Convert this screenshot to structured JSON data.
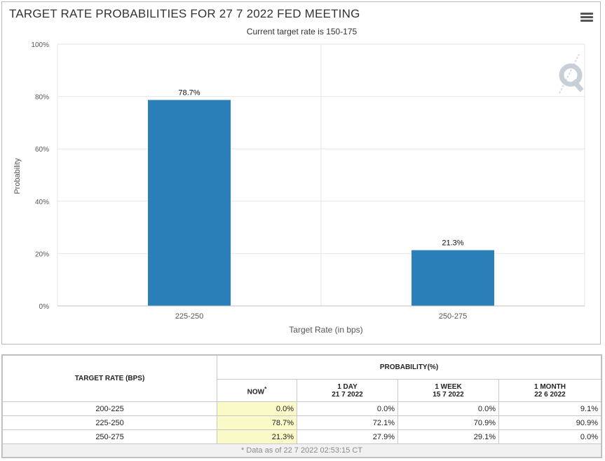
{
  "chart": {
    "title": "TARGET RATE PROBABILITIES FOR 27 7 2022 FED MEETING",
    "subtitle": "Current target rate is 150-175",
    "menu_icon": "hamburger-menu-icon",
    "watermark_icon": "quikstrike-q-logo",
    "bar_color": "#2a7fb8"
  },
  "chart_data": {
    "type": "bar",
    "title": "TARGET RATE PROBABILITIES FOR 27 7 2022 FED MEETING",
    "subtitle": "Current target rate is 150-175",
    "categories": [
      "225-250",
      "250-275"
    ],
    "values": [
      78.7,
      21.3
    ],
    "data_labels": [
      "78.7%",
      "21.3%"
    ],
    "xlabel": "Target Rate (in bps)",
    "ylabel": "Probability",
    "ylim": [
      0,
      100
    ],
    "yticks": [
      0,
      20,
      40,
      60,
      80,
      100
    ],
    "ytick_labels": [
      "0%",
      "20%",
      "40%",
      "60%",
      "80%",
      "100%"
    ],
    "grid": true,
    "legend": "none"
  },
  "table": {
    "rate_header": "TARGET RATE (BPS)",
    "prob_header": "PROBABILITY(%)",
    "col_now": "NOW",
    "col_now_mark": "*",
    "col_1day": "1 DAY",
    "col_1day_date": "21 7 2022",
    "col_1week": "1 WEEK",
    "col_1week_date": "15 7 2022",
    "col_1month": "1 MONTH",
    "col_1month_date": "22 6 2022",
    "rows": [
      {
        "rate": "200-225",
        "now": "0.0%",
        "day": "0.0%",
        "week": "0.0%",
        "month": "9.1%"
      },
      {
        "rate": "225-250",
        "now": "78.7%",
        "day": "72.1%",
        "week": "70.9%",
        "month": "90.9%"
      },
      {
        "rate": "250-275",
        "now": "21.3%",
        "day": "27.9%",
        "week": "29.1%",
        "month": "0.0%"
      }
    ],
    "footnote": "* Data as of 22 7 2022 02:53:15 CT"
  }
}
